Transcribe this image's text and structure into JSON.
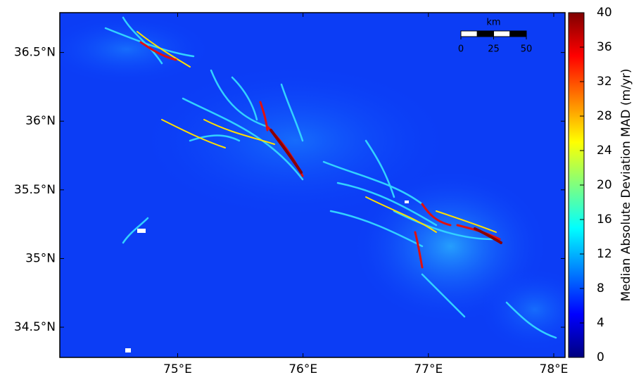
{
  "map": {
    "xlim": [
      74.06,
      78.09
    ],
    "ylim": [
      34.28,
      36.79
    ],
    "xticks": [
      {
        "value": 75,
        "label": "75°E"
      },
      {
        "value": 76,
        "label": "76°E"
      },
      {
        "value": 77,
        "label": "77°E"
      },
      {
        "value": 78,
        "label": "78°E"
      }
    ],
    "yticks": [
      {
        "value": 34.5,
        "label": "34.5°N"
      },
      {
        "value": 35,
        "label": "35°N"
      },
      {
        "value": 35.5,
        "label": "35.5°N"
      },
      {
        "value": 36,
        "label": "36°N"
      },
      {
        "value": 36.5,
        "label": "36.5°N"
      }
    ],
    "colorbar": {
      "label": "Median Absolute Deviation MAD (m/yr)",
      "lim": [
        0,
        40
      ],
      "ticks": [
        0,
        4,
        8,
        12,
        16,
        20,
        24,
        28,
        32,
        36,
        40
      ],
      "colors": [
        "#00007f",
        "#0000ff",
        "#007fff",
        "#00ffff",
        "#7fff7f",
        "#ffff00",
        "#ff7f00",
        "#ff0000",
        "#7f0000"
      ]
    },
    "scale_bar": {
      "unit": "km",
      "ticks": [
        0,
        25,
        50
      ]
    }
  }
}
